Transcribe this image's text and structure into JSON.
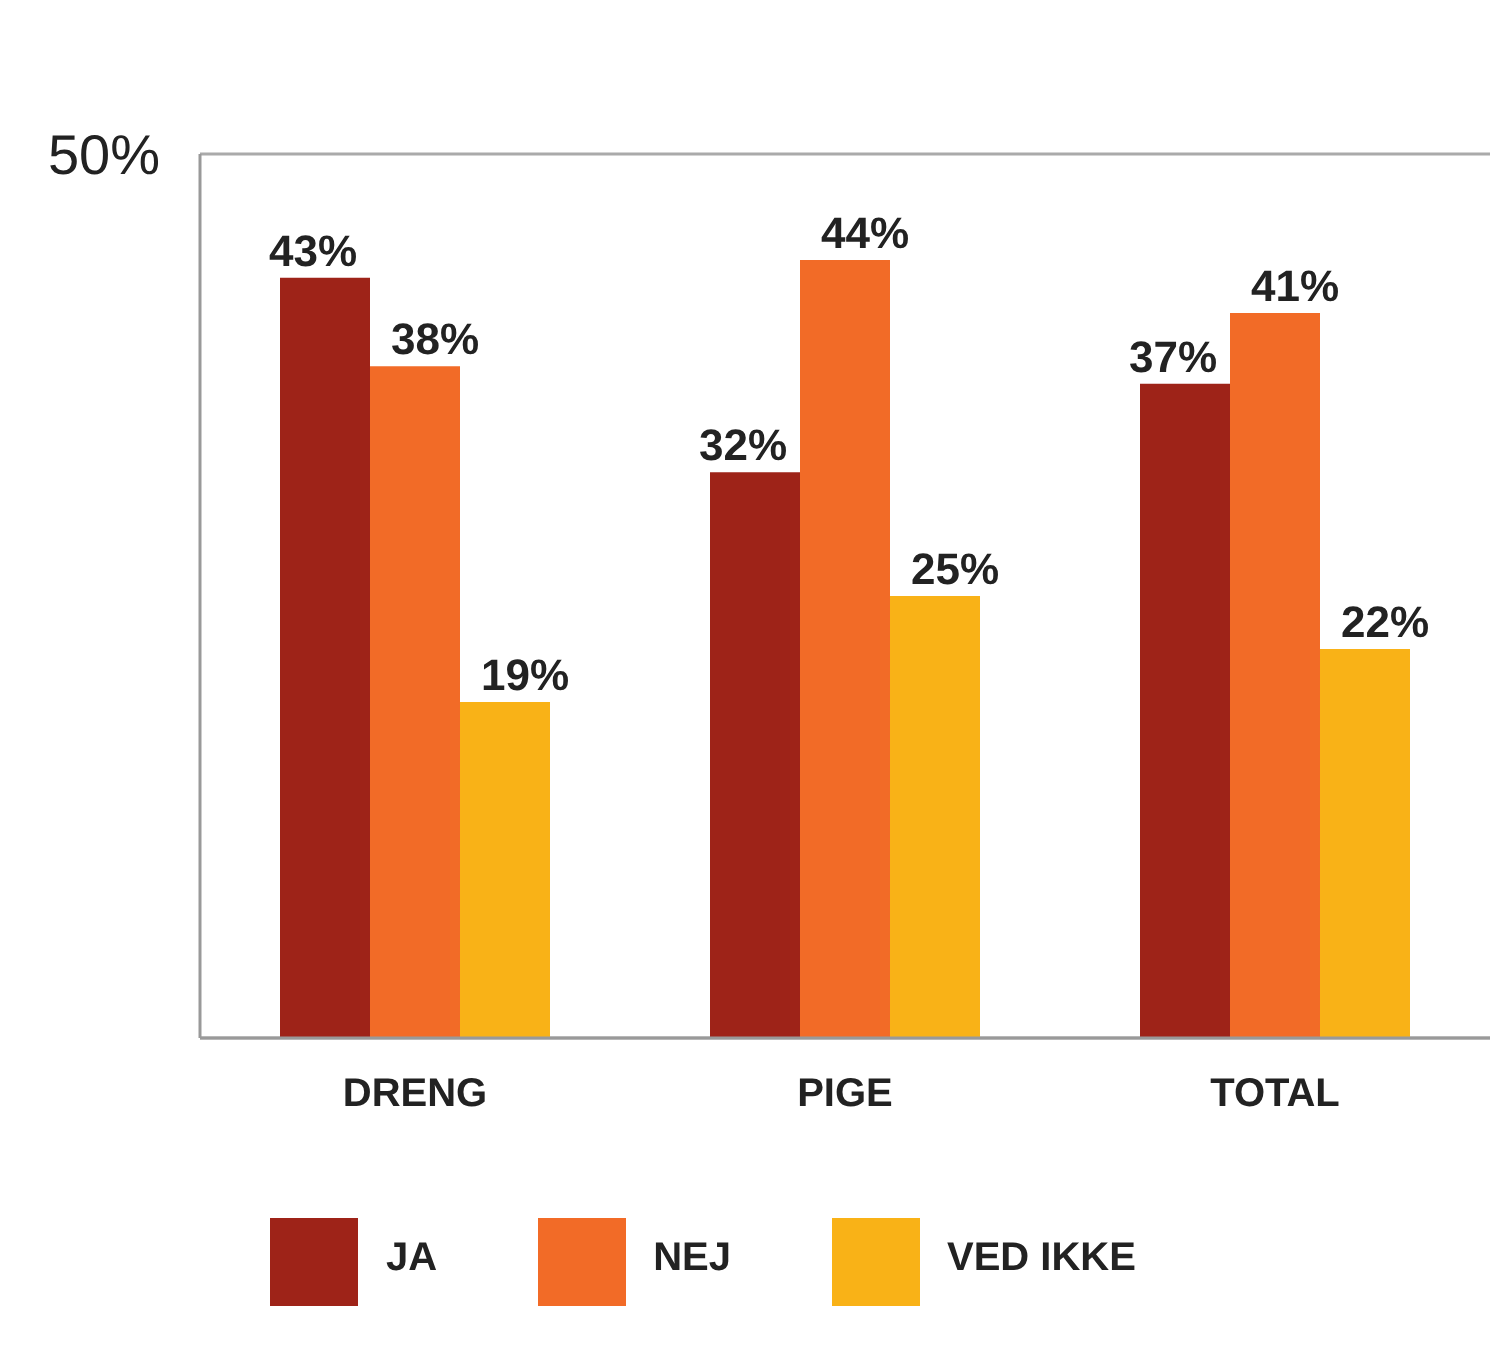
{
  "chart_data": {
    "type": "bar",
    "categories": [
      "DRENG",
      "PIGE",
      "TOTAL"
    ],
    "series": [
      {
        "name": "JA",
        "color": "#9e2318",
        "values": [
          43,
          32,
          37
        ]
      },
      {
        "name": "NEJ",
        "color": "#f26b27",
        "values": [
          38,
          44,
          41
        ]
      },
      {
        "name": "VED IKKE",
        "color": "#f9b217",
        "values": [
          19,
          25,
          22
        ]
      }
    ],
    "value_labels": [
      [
        "43%",
        "32%",
        "37%"
      ],
      [
        "38%",
        "44%",
        "41%"
      ],
      [
        "19%",
        "25%",
        "22%"
      ]
    ],
    "ylim": [
      0,
      50
    ],
    "yticks": [
      {
        "value": 0,
        "label": null
      },
      {
        "value": 50,
        "label": "50%"
      }
    ],
    "grid": "y",
    "legend": "bottom"
  }
}
